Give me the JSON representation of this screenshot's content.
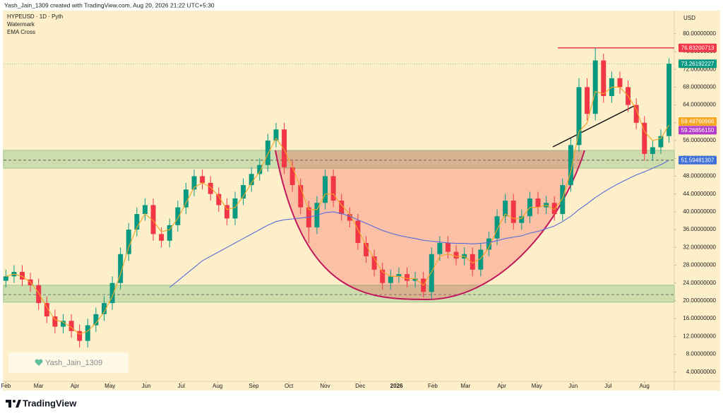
{
  "header": {
    "credit": "Yash_Jain_1309 created with TradingView.com, Aug 20, 2026 21:22 UTC+5:30"
  },
  "legend": {
    "symbol": "HYPEUSD · 1D · Pyth",
    "items": [
      "Watermark",
      "EMA Cross"
    ]
  },
  "watermark": "Yash_Jain_1309",
  "footer": {
    "brand": "TradingView"
  },
  "chart_data": {
    "type": "candlestick",
    "currency": "USD",
    "up_color": "#089981",
    "down_color": "#f23645",
    "xlim": [
      -2,
      571.5
    ],
    "ylim": [
      1.9,
      85.2
    ],
    "grid": false,
    "xticks": [
      {
        "value": 0,
        "label": "Feb"
      },
      {
        "value": 28,
        "label": "Mar"
      },
      {
        "value": 59,
        "label": "Apr"
      },
      {
        "value": 89,
        "label": "May"
      },
      {
        "value": 120,
        "label": "Jun"
      },
      {
        "value": 150,
        "label": "Jul"
      },
      {
        "value": 181,
        "label": "Aug"
      },
      {
        "value": 212,
        "label": "Sep"
      },
      {
        "value": 242,
        "label": "Oct"
      },
      {
        "value": 273,
        "label": "Nov"
      },
      {
        "value": 303,
        "label": "Dec"
      },
      {
        "value": 334,
        "label": "2026"
      },
      {
        "value": 365,
        "label": "Feb"
      },
      {
        "value": 393,
        "label": "Mar"
      },
      {
        "value": 424,
        "label": "Apr"
      },
      {
        "value": 454,
        "label": "May"
      },
      {
        "value": 485,
        "label": "Jun"
      },
      {
        "value": 515,
        "label": "Jul"
      },
      {
        "value": 546,
        "label": "Aug"
      }
    ],
    "yticks": [
      {
        "value": 4,
        "label": "4.00000000"
      },
      {
        "value": 8,
        "label": "8.00000000"
      },
      {
        "value": 12,
        "label": "12.00000000"
      },
      {
        "value": 16,
        "label": "16.00000000"
      },
      {
        "value": 20,
        "label": "20.00000000"
      },
      {
        "value": 24,
        "label": "24.00000000"
      },
      {
        "value": 28,
        "label": "28.00000000"
      },
      {
        "value": 32,
        "label": "32.00000000"
      },
      {
        "value": 36,
        "label": "36.00000000"
      },
      {
        "value": 40,
        "label": "40.00000000"
      },
      {
        "value": 44,
        "label": "44.00000000"
      },
      {
        "value": 48,
        "label": "48.00000000"
      },
      {
        "value": 52,
        "label": "52.00000000"
      },
      {
        "value": 56,
        "label": "56.00000000"
      },
      {
        "value": 60,
        "label": "60.00000000"
      },
      {
        "value": 64,
        "label": "64.00000000"
      },
      {
        "value": 68,
        "label": "68.00000000"
      },
      {
        "value": 72,
        "label": "72.00000000"
      },
      {
        "value": 76,
        "label": "76.00000000"
      },
      {
        "value": 80,
        "label": "80.00000000"
      }
    ],
    "x": [
      0,
      7,
      14,
      21,
      28,
      35,
      42,
      49,
      56,
      63,
      70,
      77,
      84,
      91,
      98,
      105,
      112,
      119,
      126,
      133,
      140,
      147,
      154,
      161,
      168,
      175,
      182,
      189,
      196,
      203,
      210,
      217,
      224,
      231,
      238,
      245,
      252,
      259,
      266,
      273,
      280,
      287,
      294,
      301,
      308,
      315,
      322,
      329,
      336,
      343,
      350,
      357,
      364,
      371,
      378,
      385,
      392,
      399,
      406,
      413,
      420,
      427,
      434,
      441,
      448,
      455,
      462,
      469,
      476,
      483,
      490,
      497,
      504,
      511,
      518,
      525,
      532,
      539,
      546,
      553,
      560,
      567
    ],
    "open": [
      24.5,
      25.5,
      26.5,
      24.8,
      23.5,
      19.5,
      16.5,
      14.2,
      15.5,
      13.2,
      11.0,
      14.5,
      17.0,
      19.5,
      24.0,
      30.5,
      36.0,
      39.5,
      41.5,
      35.0,
      33.5,
      37.0,
      41.0,
      45.0,
      48.0,
      46.5,
      44.0,
      41.5,
      38.5,
      43.0,
      46.0,
      48.5,
      50.5,
      56.0,
      58.5,
      50.0,
      46.0,
      41.0,
      36.5,
      42.0,
      48.0,
      42.5,
      39.5,
      38.0,
      33.0,
      30.0,
      27.0,
      24.0,
      25.5,
      26.0,
      24.5,
      25.0,
      22.0,
      30.5,
      33.0,
      31.0,
      29.5,
      30.5,
      27.0,
      31.5,
      34.0,
      39.0,
      42.5,
      37.5,
      39.0,
      43.0,
      41.0,
      42.0,
      39.5,
      46.0,
      55.0,
      68.0,
      62.0,
      74.0,
      66.0,
      70.0,
      68.0,
      64.0,
      60.0,
      53.0,
      54.5,
      57.0
    ],
    "high": [
      27,
      28,
      28,
      26.3,
      25,
      21,
      18,
      17,
      17,
      14.7,
      16,
      18.5,
      21,
      25.5,
      32,
      37.5,
      41,
      43,
      43,
      36.5,
      38.5,
      42.5,
      46.5,
      49.5,
      49.5,
      48,
      45.5,
      43,
      44.5,
      47.5,
      50,
      52,
      57.5,
      60,
      60,
      51.5,
      47.5,
      42.5,
      43.5,
      49.5,
      49.5,
      44,
      41,
      39.5,
      34.5,
      31.5,
      28.5,
      27,
      27.5,
      27.5,
      26.5,
      26.5,
      32,
      34.5,
      34.5,
      32.5,
      32,
      32,
      33,
      35.5,
      40.5,
      44,
      44,
      40.5,
      44.5,
      44.5,
      43.5,
      43.5,
      47.5,
      56.5,
      70,
      70,
      76.83,
      75.5,
      71.5,
      71.5,
      69.5,
      65.5,
      61.5,
      56,
      58.5,
      74.5
    ],
    "low": [
      23,
      24,
      23.3,
      22,
      18,
      15,
      12.7,
      12.7,
      11.7,
      9.5,
      9.5,
      13,
      15.5,
      18,
      22.5,
      29,
      34.5,
      38,
      33.5,
      32,
      32,
      35.5,
      39.5,
      43.5,
      45,
      42.5,
      40,
      37,
      37,
      41.5,
      44.5,
      47,
      49,
      54.5,
      48.5,
      44.5,
      39.5,
      33,
      35,
      40.5,
      41,
      38,
      36.5,
      31.5,
      28.5,
      25.5,
      22.5,
      22.5,
      24,
      23,
      23,
      20.8,
      20.5,
      29,
      29.5,
      28,
      28,
      25.5,
      25.5,
      30,
      32.5,
      37.5,
      36,
      36,
      37.5,
      39.5,
      39.5,
      38,
      38,
      44.5,
      53.5,
      60.5,
      60.5,
      64.5,
      64.5,
      66.5,
      62.5,
      58.5,
      51.5,
      51.5,
      53,
      55.5
    ],
    "close": [
      25.5,
      26.5,
      24.8,
      23.5,
      19.5,
      16.5,
      14.2,
      15.5,
      13.2,
      11.0,
      14.5,
      17.0,
      19.5,
      24.0,
      30.5,
      36.0,
      39.5,
      41.5,
      35.0,
      33.5,
      37.0,
      41.0,
      45.0,
      48.0,
      46.5,
      44.0,
      41.5,
      38.5,
      43.0,
      46.0,
      48.5,
      50.5,
      56.0,
      58.5,
      50.0,
      46.0,
      41.0,
      36.5,
      42.0,
      48.0,
      42.5,
      39.5,
      38.0,
      33.0,
      30.0,
      27.0,
      24.0,
      25.5,
      26.0,
      24.5,
      25.0,
      22.0,
      30.5,
      33.0,
      31.0,
      29.5,
      30.5,
      27.0,
      31.5,
      34.0,
      39.0,
      42.5,
      37.5,
      39.0,
      43.0,
      41.0,
      42.0,
      39.5,
      46.0,
      55.0,
      68.0,
      62.0,
      74.0,
      66.0,
      70.0,
      68.0,
      64.0,
      60.0,
      53.0,
      54.5,
      57.0,
      73.26
    ],
    "ema_series": [
      {
        "color": "#f5a623",
        "values": [
          25.5,
          26,
          25.5,
          24.2,
          21.8,
          18.5,
          15.8,
          15.2,
          14,
          12.5,
          13.2,
          15,
          17.5,
          21,
          26,
          32,
          36.5,
          39.5,
          38,
          35.5,
          36,
          38.5,
          42,
          45.5,
          46.5,
          45.5,
          43.5,
          40.5,
          41,
          43.5,
          46.5,
          49,
          53,
          56.5,
          54,
          50,
          45.5,
          40.5,
          40.5,
          44,
          44,
          41.5,
          39.5,
          36,
          32.5,
          29.5,
          26.5,
          25.5,
          25.5,
          25,
          25,
          23.5,
          26.5,
          30,
          30.5,
          30,
          30,
          28.5,
          29.5,
          32,
          36,
          39.5,
          38.5,
          38.5,
          41,
          41,
          41.5,
          40.5,
          43,
          49,
          58,
          60,
          67,
          66.5,
          68,
          68,
          66,
          63,
          58,
          56,
          56.5,
          59.5
        ]
      },
      {
        "color": "#5b6bd6",
        "values": [
          null,
          null,
          null,
          null,
          null,
          null,
          null,
          null,
          null,
          null,
          null,
          null,
          null,
          null,
          null,
          null,
          null,
          null,
          null,
          null,
          23,
          24.5,
          26,
          27.5,
          29,
          30,
          31,
          32,
          33,
          34,
          35,
          36,
          37,
          37.8,
          38.2,
          38.4,
          38.6,
          38.8,
          39.2,
          39.8,
          40,
          39.6,
          39,
          38.2,
          37.4,
          36.6,
          35.8,
          35.2,
          34.7,
          34.3,
          34,
          33.6,
          33.4,
          33.2,
          33,
          32.9,
          32.9,
          32.8,
          32.9,
          33.1,
          33.5,
          34,
          34.3,
          34.6,
          35.2,
          35.6,
          36.2,
          36.8,
          37.8,
          39,
          40.5,
          41.8,
          43.2,
          44.4,
          45.5,
          46.5,
          47.4,
          48.3,
          49,
          49.8,
          50.6,
          51.59
        ]
      }
    ],
    "zones": [
      {
        "from": 49.8,
        "to": 53.8
      },
      {
        "from": 19.7,
        "to": 23.5
      }
    ],
    "levels": [
      51.59,
      21.4
    ],
    "price_labels": [
      {
        "value": 76.83200713,
        "label": "76.83200713",
        "color": "#f23645"
      },
      {
        "value": 73.26192227,
        "label": "73.26192227",
        "color": "#089981"
      },
      {
        "value": 59.49760966,
        "label": "59.49760966",
        "color": "#f5a623"
      },
      {
        "value": 59.2685615,
        "label": "59.26856150",
        "color": "#b33cc8"
      },
      {
        "value": 51.59481307,
        "label": "51.59481307",
        "color": "#3f6fd8"
      }
    ]
  }
}
